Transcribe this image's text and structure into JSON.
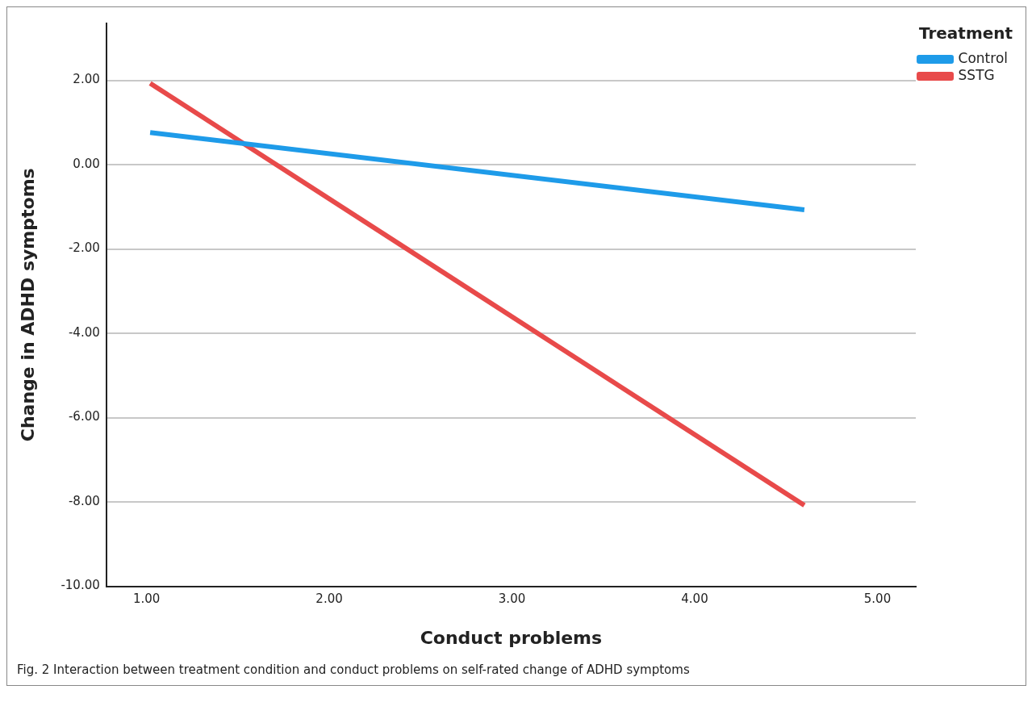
{
  "chart_data": {
    "type": "line",
    "xlabel": "Conduct problems",
    "ylabel": "Change in ADHD symptoms",
    "legend_title": "Treatment",
    "legend": "top right",
    "xlim": [
      0.78,
      5.21
    ],
    "xticks": [
      {
        "value": 1,
        "label": "1.00"
      },
      {
        "value": 2,
        "label": "2.00"
      },
      {
        "value": 3,
        "label": "3.00"
      },
      {
        "value": 4,
        "label": "4.00"
      },
      {
        "value": 5,
        "label": "5.00"
      }
    ],
    "ylim": [
      -10,
      3.35
    ],
    "yticks": [
      {
        "value": -10,
        "label": "-10.00"
      },
      {
        "value": -8,
        "label": "-8.00"
      },
      {
        "value": -6,
        "label": "-6.00"
      },
      {
        "value": -4,
        "label": "-4.00"
      },
      {
        "value": -2,
        "label": "-2.00"
      },
      {
        "value": 0,
        "label": "0.00"
      },
      {
        "value": 2,
        "label": "2.00"
      }
    ],
    "x": [
      1.02,
      4.6
    ],
    "grid": "y",
    "marker": "none",
    "line_style": "solid",
    "series": [
      {
        "name": "Control",
        "color": "#1e9be9",
        "values": [
          0.76,
          -1.07
        ]
      },
      {
        "name": "SSTG",
        "color": "#e84a4a",
        "values": [
          1.93,
          -8.08
        ]
      }
    ],
    "annotations": [
      "Fig. 2  Interaction between treatment condition and conduct problems on self-rated change of ADHD symptoms"
    ]
  }
}
